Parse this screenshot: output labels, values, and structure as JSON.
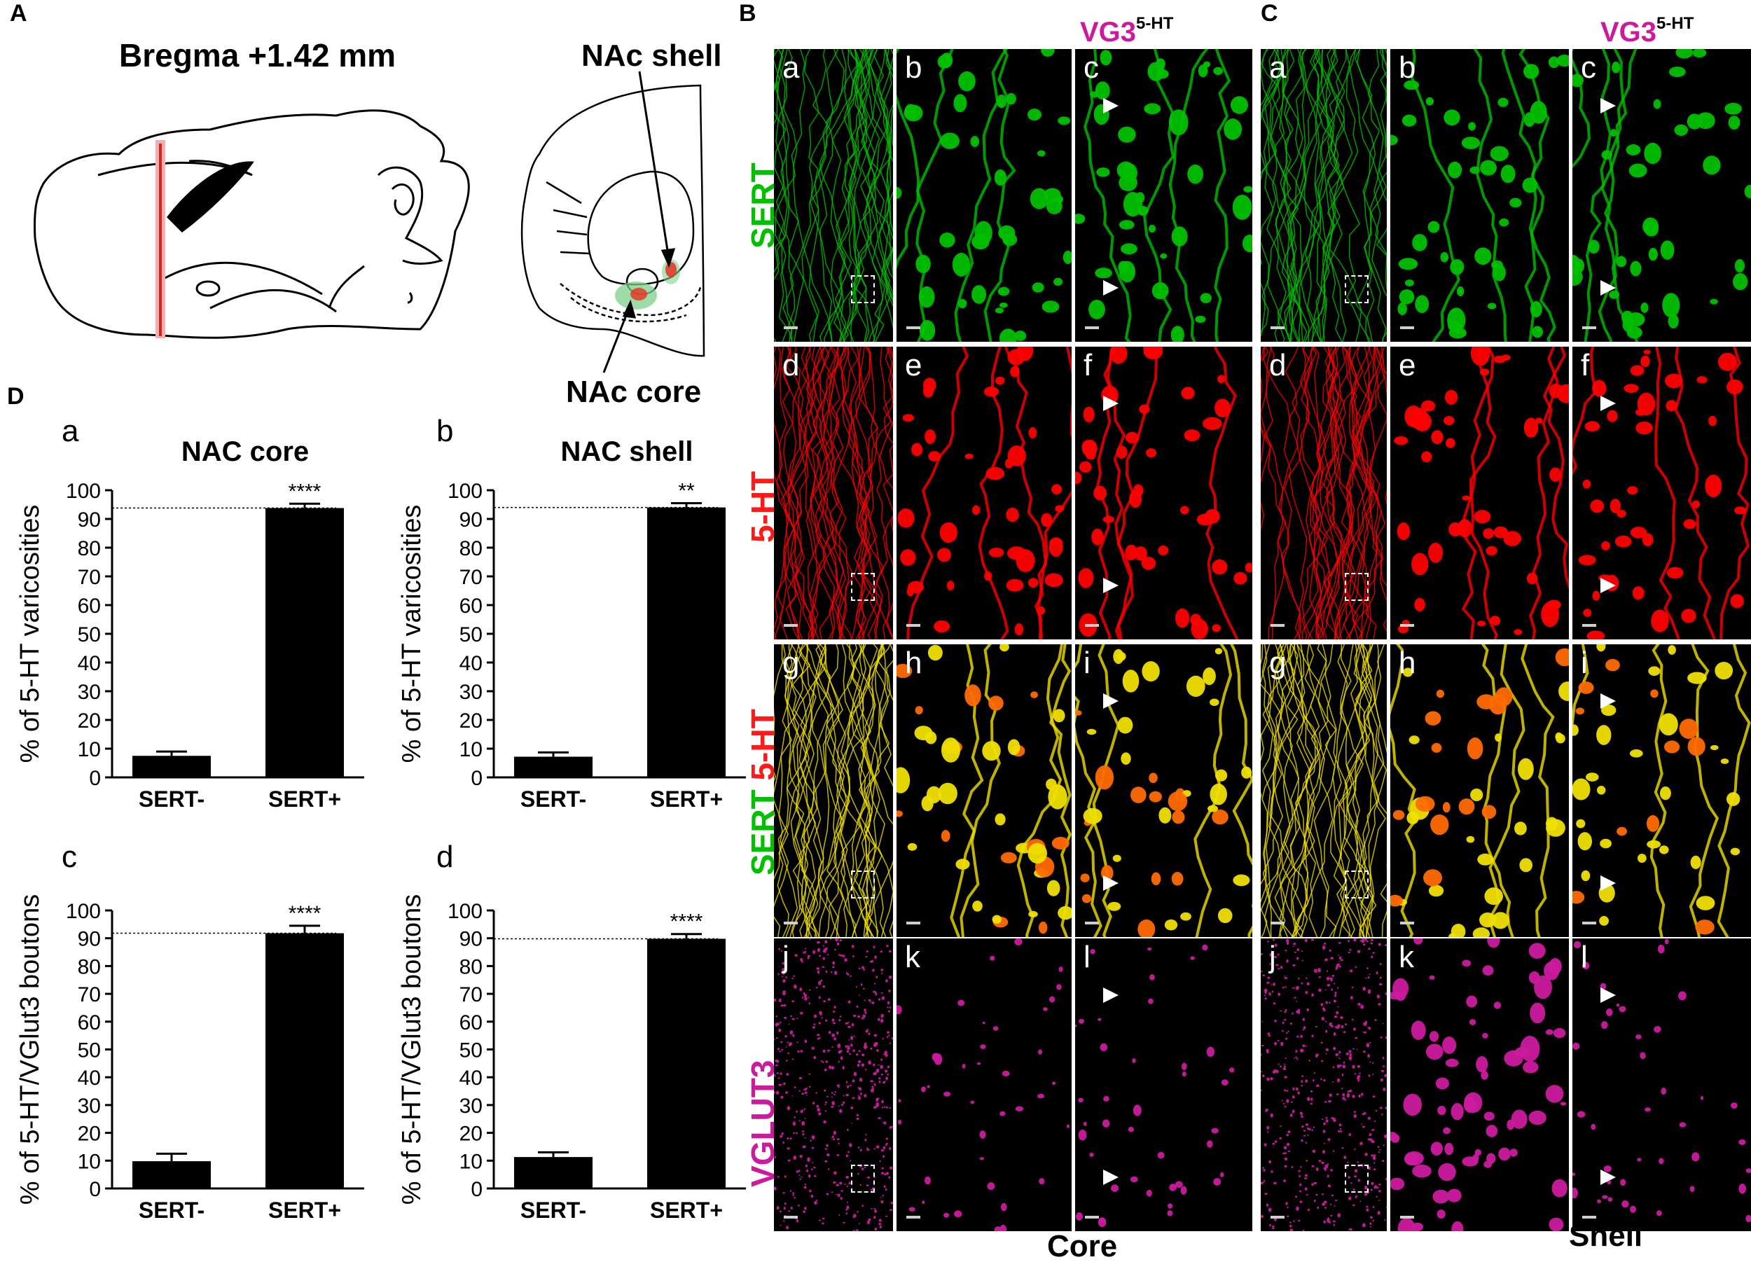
{
  "panel_letters": {
    "A": "A",
    "B": "B",
    "C": "C",
    "D": "D"
  },
  "anatomy": {
    "bregma": "Bregma +1.42 mm",
    "nac_shell": "NAc shell",
    "nac_core": "NAc core"
  },
  "stain_labels": {
    "sert": "SERT",
    "five_ht": "5-HT",
    "sert_merge": "SERT",
    "five_ht_merge": "5-HT",
    "vglut3": "VGLUT3"
  },
  "vg3": {
    "main": "VG3",
    "sup": "5-HT"
  },
  "columns": {
    "core": "Core",
    "shell": "Shell"
  },
  "tile_letters": [
    "a",
    "b",
    "c",
    "d",
    "e",
    "f",
    "g",
    "h",
    "i",
    "j",
    "k",
    "l"
  ],
  "colors": {
    "sert": "#00c000",
    "five_ht": "#ff0000",
    "vglut3": "#cc1a9e",
    "merge": "#f0e000",
    "micro_bg": "#000000"
  },
  "chart_data": [
    {
      "type": "bar",
      "panel": "a",
      "title": "NAC core",
      "ylabel": "% of 5-HT varicosities",
      "categories": [
        "SERT-",
        "SERT+"
      ],
      "values": [
        7.5,
        93.8
      ],
      "errors": [
        1.5,
        1.5
      ],
      "significance": "****",
      "reference_line": 93.8,
      "ylim": [
        0,
        100
      ],
      "yticks": [
        "0",
        "10",
        "20",
        "30",
        "40",
        "50",
        "60",
        "70",
        "80",
        "90",
        "100"
      ]
    },
    {
      "type": "bar",
      "panel": "b",
      "title": "NAC shell",
      "ylabel": "% of 5-HT varicosities",
      "categories": [
        "SERT-",
        "SERT+"
      ],
      "values": [
        7.2,
        94.0
      ],
      "errors": [
        1.5,
        1.5
      ],
      "significance": "**",
      "reference_line": 94.0,
      "ylim": [
        0,
        100
      ],
      "yticks": [
        "0",
        "10",
        "20",
        "30",
        "40",
        "50",
        "60",
        "70",
        "80",
        "90",
        "100"
      ]
    },
    {
      "type": "bar",
      "panel": "c",
      "title": "",
      "ylabel": "% of 5-HT/VGlut3 boutons",
      "categories": [
        "SERT-",
        "SERT+"
      ],
      "values": [
        9.8,
        91.8
      ],
      "errors": [
        2.7,
        2.7
      ],
      "significance": "****",
      "reference_line": 91.8,
      "ylim": [
        0,
        100
      ],
      "yticks": [
        "0",
        "10",
        "20",
        "30",
        "40",
        "50",
        "60",
        "70",
        "80",
        "90",
        "100"
      ]
    },
    {
      "type": "bar",
      "panel": "d",
      "title": "",
      "ylabel": "% of 5-HT/VGlut3 boutons",
      "categories": [
        "SERT-",
        "SERT+"
      ],
      "values": [
        11.3,
        89.8
      ],
      "errors": [
        1.7,
        1.7
      ],
      "significance": "****",
      "reference_line": 89.8,
      "ylim": [
        0,
        100
      ],
      "yticks": [
        "0",
        "10",
        "20",
        "30",
        "40",
        "50",
        "60",
        "70",
        "80",
        "90",
        "100"
      ]
    }
  ]
}
